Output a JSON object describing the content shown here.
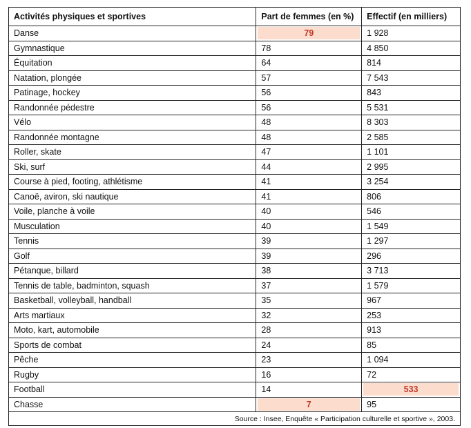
{
  "table": {
    "header": [
      "Activités physiques et sportives",
      "Part de femmes (en %)",
      "Effectif (en milliers)"
    ],
    "rows": [
      [
        "Danse",
        "79",
        "1 928"
      ],
      [
        "Gymnastique",
        "78",
        "4 850"
      ],
      [
        "Équitation",
        "64",
        "814"
      ],
      [
        "Natation, plongée",
        "57",
        "7 543"
      ],
      [
        "Patinage, hockey",
        "56",
        "843"
      ],
      [
        "Randonnée pédestre",
        "56",
        "5 531"
      ],
      [
        "Vélo",
        "48",
        "8 303"
      ],
      [
        "Randonnée montagne",
        "48",
        "2 585"
      ],
      [
        "Roller, skate",
        "47",
        "1 101"
      ],
      [
        "Ski, surf",
        "44",
        "2 995"
      ],
      [
        "Course à pied, footing, athlétisme",
        "41",
        "3 254"
      ],
      [
        "Canoë, aviron, ski nautique",
        "41",
        "806"
      ],
      [
        "Voile, planche à voile",
        "40",
        "546"
      ],
      [
        "Musculation",
        "40",
        "1 549"
      ],
      [
        "Tennis",
        "39",
        "1 297"
      ],
      [
        "Golf",
        "39",
        "296"
      ],
      [
        "Pétanque, billard",
        "38",
        "3 713"
      ],
      [
        "Tennis de table, badminton, squash",
        "37",
        "1 579"
      ],
      [
        "Basketball, volleyball, handball",
        "35",
        "967"
      ],
      [
        "Arts martiaux",
        "32",
        "253"
      ],
      [
        "Moto, kart, automobile",
        "28",
        "913"
      ],
      [
        "Sports de combat",
        "24",
        "85"
      ],
      [
        "Pêche",
        "23",
        "1 094"
      ],
      [
        "Rugby",
        "16",
        "72"
      ],
      [
        "Football",
        "14",
        "533"
      ],
      [
        "Chasse",
        "7",
        "95"
      ]
    ],
    "highlighted_cells": [
      [
        0,
        1
      ],
      [
        24,
        2
      ],
      [
        25,
        1
      ]
    ],
    "highlight_color": "#fbdccd",
    "highlight_text_color": "#c0392b",
    "source": "Source : Insee, Enquête « Participation culturelle et sportive », 2003."
  }
}
